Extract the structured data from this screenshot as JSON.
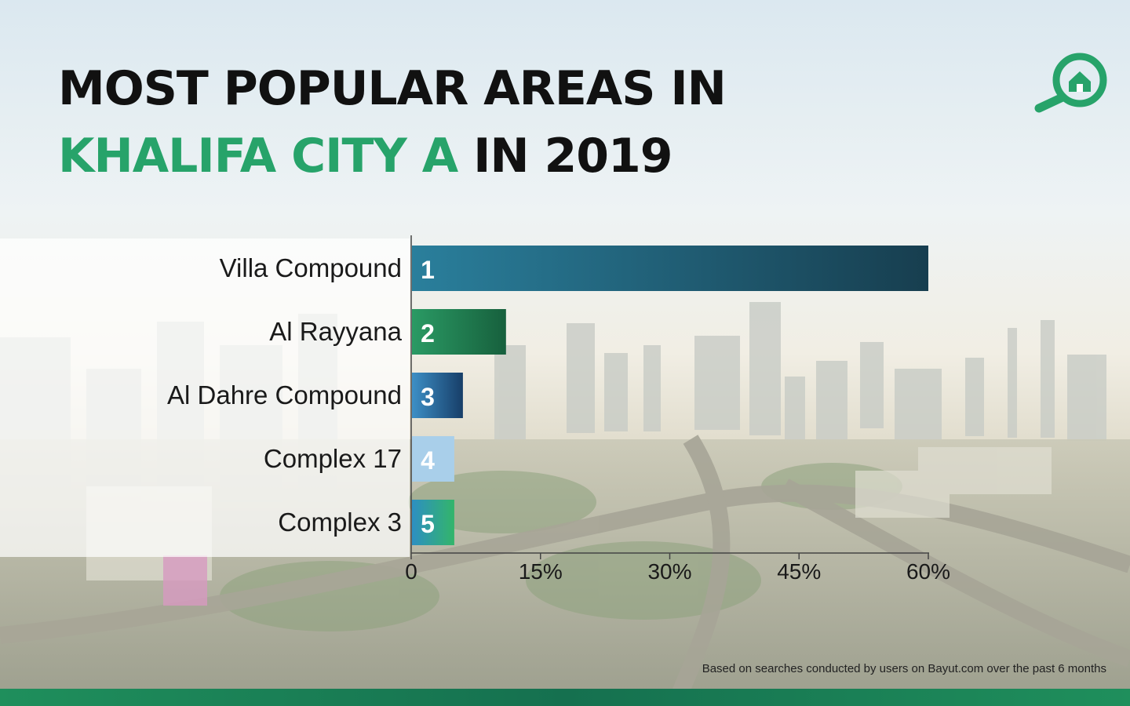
{
  "title": {
    "line1": "MOST POPULAR AREAS IN",
    "highlight": "KHALIFA CITY A",
    "line2_rest": "IN 2019"
  },
  "logo_icon": "search-home-icon",
  "footnote": "Based on searches conducted by users on Bayut.com over the past 6 months",
  "colors": {
    "accent": "#27a36a",
    "title": "#111111",
    "bottom_bar": "#1f8f5c"
  },
  "chart_data": {
    "type": "bar",
    "orientation": "horizontal",
    "categories": [
      "Villa Compound",
      "Al Rayyana",
      "Al Dahre Compound",
      "Complex 17",
      "Complex 3"
    ],
    "values": [
      60,
      11,
      6,
      5,
      5
    ],
    "rank_labels": [
      "1",
      "2",
      "3",
      "4",
      "5"
    ],
    "bar_colors": [
      [
        "#2a7f9c",
        "#173e4f"
      ],
      [
        "#2a9a64",
        "#17603d"
      ],
      [
        "#3d8fc6",
        "#173e68"
      ],
      [
        "#a9cfea",
        "#a9cfea"
      ],
      [
        "#2d8fc2",
        "#33b56a"
      ]
    ],
    "xlim": [
      0,
      60
    ],
    "xticks": [
      0,
      15,
      30,
      45,
      60
    ],
    "xtick_labels": [
      "0",
      "15%",
      "30%",
      "45%",
      "60%"
    ],
    "grid": false,
    "legend": "none"
  }
}
